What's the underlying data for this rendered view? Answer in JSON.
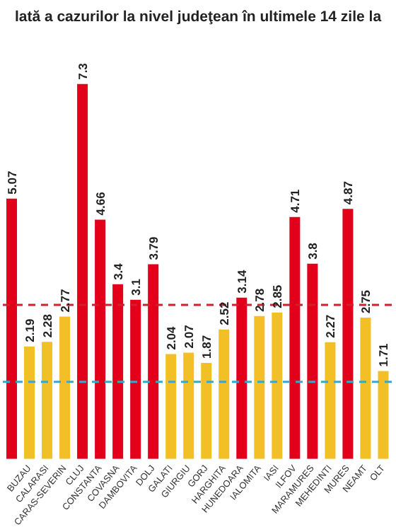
{
  "chart_data": {
    "type": "bar",
    "title": "lată a cazurilor la nivel judeţean în ultimele 14 zile la",
    "categories": [
      null,
      "BUZAU",
      "CALARASI",
      "CARAS-SEVERIN",
      "CLUJ",
      "CONSTANTA",
      "COVASNA",
      "DAMBOVITA",
      "DOLJ",
      "GALATI",
      "GIURGIU",
      "GORJ",
      "HARGHITA",
      "HUNEDOARA",
      "IALOMITA",
      "IASI",
      "ILFOV",
      "MARAMURES",
      "MEHEDINTI",
      "MURES",
      "NEAMT",
      "OLT"
    ],
    "values": [
      5.07,
      2.19,
      2.28,
      2.77,
      7.3,
      4.66,
      3.4,
      3.1,
      3.79,
      2.04,
      2.07,
      1.87,
      2.52,
      3.14,
      2.78,
      2.85,
      4.71,
      3.8,
      2.27,
      4.87,
      2.75,
      1.71
    ],
    "colors": [
      "#e3001b",
      "#f2bf26",
      "#f2bf26",
      "#f2bf26",
      "#e3001b",
      "#e3001b",
      "#e3001b",
      "#e3001b",
      "#e3001b",
      "#f2bf26",
      "#f2bf26",
      "#f2bf26",
      "#f2bf26",
      "#e3001b",
      "#f2bf26",
      "#f2bf26",
      "#e3001b",
      "#e3001b",
      "#f2bf26",
      "#e3001b",
      "#f2bf26",
      "#f2bf26"
    ],
    "data_labels": true,
    "ref_lines": [
      {
        "axis": "y",
        "value": 3,
        "color": "#d0202a",
        "line_style": "dashed"
      },
      {
        "axis": "y",
        "value": 1.5,
        "color": "#3aa7c9",
        "line_style": "dashed"
      }
    ],
    "grid": false,
    "legend": false
  }
}
